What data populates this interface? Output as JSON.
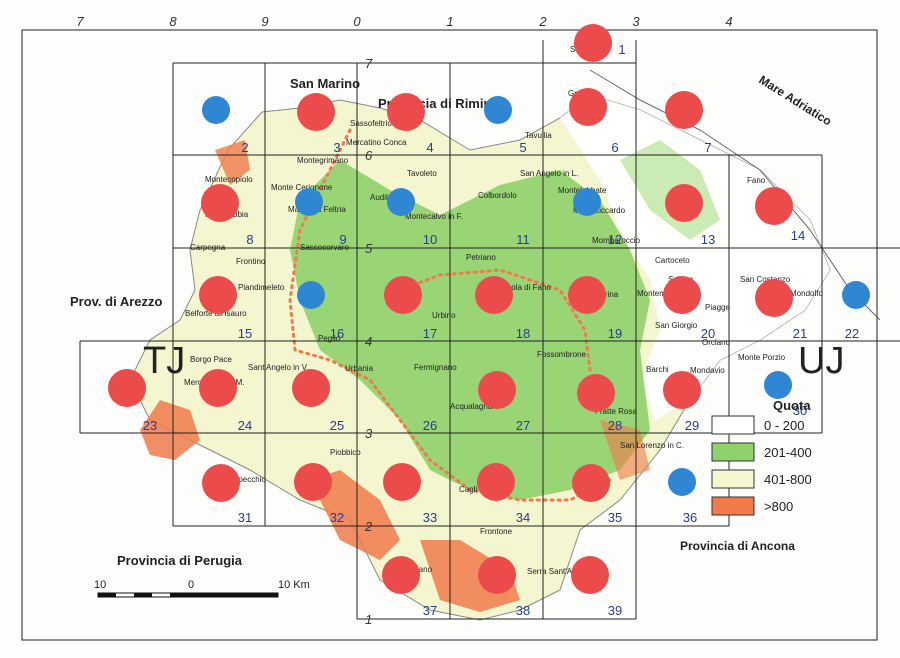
{
  "top_numbers": [
    "7",
    "8",
    "9",
    "0",
    "1",
    "2",
    "3",
    "4"
  ],
  "left_numbers": [
    "7",
    "6",
    "5",
    "4",
    "3",
    "2",
    "1"
  ],
  "region_labels": {
    "san_marino": "San Marino",
    "rimini": "Provincia di Rimini",
    "arezzo": "Prov. di Arezzo",
    "perugia": "Provincia di Perugia",
    "ancona": "Provincia di Ancona",
    "adriatico": "Mare Adriatico",
    "tj": "TJ",
    "uj": "UJ"
  },
  "towns": [
    "Sabicce",
    "Gradara",
    "Tavullia",
    "Sassofeltrio",
    "Mercatino Conca",
    "Montegrimano",
    "Monte Cerignone",
    "Macerata Feltria",
    "Montecopiolo",
    "Pietrarubbia",
    "Carpegna",
    "Frontino",
    "Sassocorvaro",
    "Auditore",
    "Tavoleto",
    "San Angelo in L.",
    "Montelabbate",
    "Monteciccardo",
    "Colbordolo",
    "Montecalvo in F.",
    "Mombaroccio",
    "Cartoceto",
    "Fano",
    "San Costanzo",
    "Mondolfo",
    "Piandimeleto",
    "Belforte all'Isauro",
    "Petriano",
    "Urbino",
    "Isola di Fano",
    "Saltara",
    "Montemaggiore",
    "Piagge",
    "San Giorgio",
    "Orciano",
    "Monte Porzio",
    "Fossombrone",
    "Serrungarina",
    "Borgo Pace",
    "Sant'Angelo in V.",
    "Urbania",
    "Peglio",
    "Fermignano",
    "Mercatello sul M.",
    "Acqualagna",
    "Barchi",
    "Mondavio",
    "Fratte Rosa",
    "San Lorenzo in C.",
    "Apecchio",
    "Piobbico",
    "Cagli",
    "Frontone",
    "Serra Sant'Abbondio",
    "Cantiano"
  ],
  "cell_numbers": [
    "1",
    "2",
    "3",
    "4",
    "5",
    "6",
    "7",
    "8",
    "9",
    "10",
    "11",
    "12",
    "13",
    "14",
    "15",
    "16",
    "17",
    "18",
    "19",
    "20",
    "21",
    "22",
    "23",
    "24",
    "25",
    "26",
    "27",
    "28",
    "29",
    "30",
    "31",
    "32",
    "33",
    "34",
    "35",
    "36",
    "37",
    "38",
    "39"
  ],
  "legend": {
    "title": "Quota",
    "classes": [
      {
        "label": "0 - 200",
        "color": "#ffffff"
      },
      {
        "label": "201-400",
        "color": "#8fd16a"
      },
      {
        "label": "401-800",
        "color": "#f3f6cf"
      },
      {
        "label": ">800",
        "color": "#f07a4a"
      }
    ]
  },
  "scale": {
    "labels": [
      "10",
      "0",
      "10 Km"
    ]
  },
  "colors": {
    "red_dot": "#ec4b4b",
    "blue_dot": "#2f86d2",
    "cell_number": "#2b3a8e",
    "green": "#8fd16a",
    "orange": "#f07a4a",
    "dotted": "#f07a4a"
  },
  "dots": [
    {
      "cell": "1",
      "color": "red"
    },
    {
      "cell": "2",
      "color": "blue"
    },
    {
      "cell": "3",
      "color": "red"
    },
    {
      "cell": "4",
      "color": "red"
    },
    {
      "cell": "5",
      "color": "blue"
    },
    {
      "cell": "6",
      "color": "red"
    },
    {
      "cell": "7",
      "color": "red"
    },
    {
      "cell": "8",
      "color": "red"
    },
    {
      "cell": "9",
      "color": "blue"
    },
    {
      "cell": "10",
      "color": "blue"
    },
    {
      "cell": "12",
      "color": "blue"
    },
    {
      "cell": "13",
      "color": "red"
    },
    {
      "cell": "14",
      "color": "red"
    },
    {
      "cell": "15",
      "color": "red"
    },
    {
      "cell": "16",
      "color": "blue"
    },
    {
      "cell": "17",
      "color": "red"
    },
    {
      "cell": "18",
      "color": "red"
    },
    {
      "cell": "19",
      "color": "red"
    },
    {
      "cell": "20",
      "color": "red"
    },
    {
      "cell": "21",
      "color": "red"
    },
    {
      "cell": "22",
      "color": "blue"
    },
    {
      "cell": "23",
      "color": "red"
    },
    {
      "cell": "24",
      "color": "red"
    },
    {
      "cell": "25",
      "color": "red"
    },
    {
      "cell": "27",
      "color": "red"
    },
    {
      "cell": "28",
      "color": "red"
    },
    {
      "cell": "29",
      "color": "red"
    },
    {
      "cell": "30",
      "color": "blue"
    },
    {
      "cell": "31",
      "color": "red"
    },
    {
      "cell": "32",
      "color": "red"
    },
    {
      "cell": "33",
      "color": "red"
    },
    {
      "cell": "34",
      "color": "red"
    },
    {
      "cell": "35",
      "color": "red"
    },
    {
      "cell": "36",
      "color": "blue"
    },
    {
      "cell": "37",
      "color": "red"
    },
    {
      "cell": "38",
      "color": "red"
    },
    {
      "cell": "39",
      "color": "red"
    }
  ]
}
